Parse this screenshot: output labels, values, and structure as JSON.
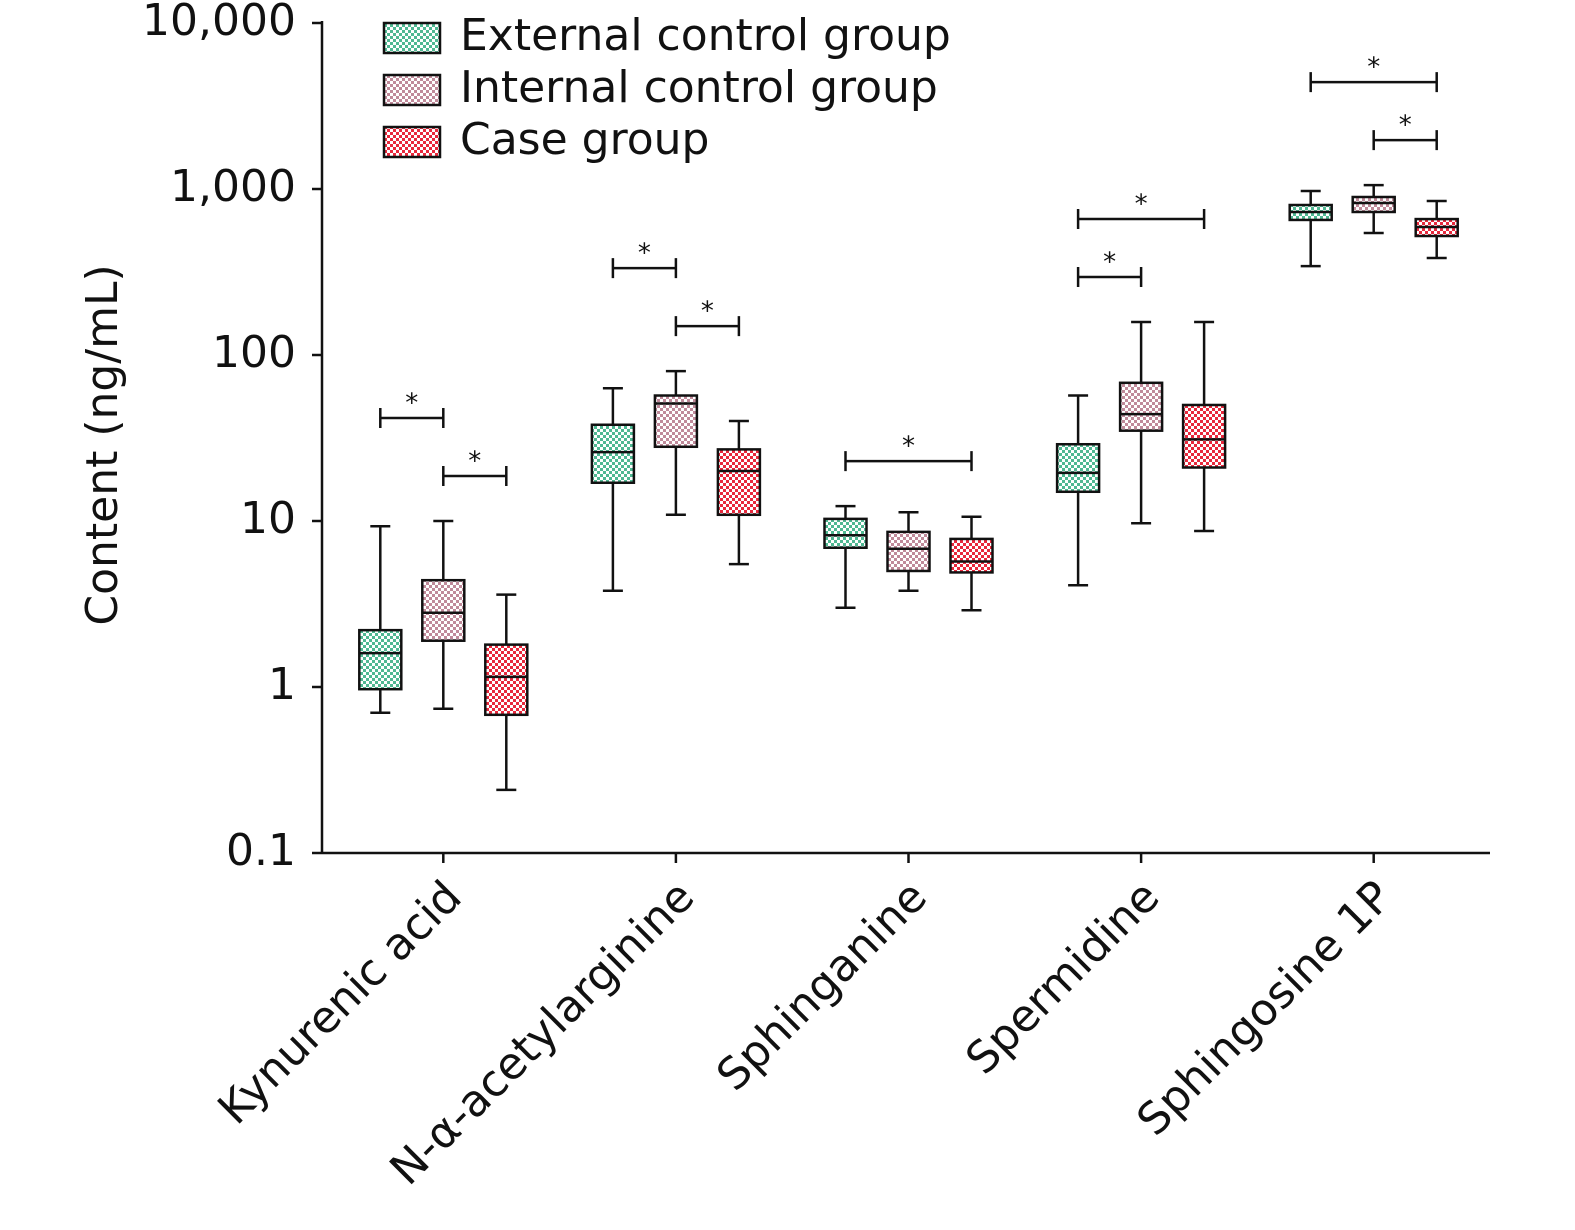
{
  "chart_data": {
    "type": "box",
    "y_label": "Content (ng/mL)",
    "yscale": "log",
    "ylim": [
      0.1,
      10000
    ],
    "yticks": [
      {
        "value": 10000,
        "label": "10,000"
      },
      {
        "value": 1000,
        "label": "1,000"
      },
      100,
      10,
      1,
      0.1
    ],
    "legend": "top-left",
    "categories": [
      "Kynurenic acid",
      "N-α-acetylarginine",
      "Sphinganine",
      "Spermidine",
      "Sphingosine 1P"
    ],
    "series": [
      {
        "name": "External control group",
        "color": "#4fb892",
        "values": [
          {
            "min": 0.7,
            "q1": 0.97,
            "median": 1.6,
            "q3": 2.2,
            "max": 9.3
          },
          {
            "min": 3.8,
            "q1": 17,
            "median": 26,
            "q3": 38,
            "max": 63
          },
          {
            "min": 3.0,
            "q1": 6.9,
            "median": 8.2,
            "q3": 10.3,
            "max": 12.3
          },
          {
            "min": 4.1,
            "q1": 15,
            "median": 19.5,
            "q3": 29,
            "max": 57
          },
          {
            "min": 343,
            "q1": 651,
            "median": 727,
            "q3": 801,
            "max": 973
          }
        ]
      },
      {
        "name": "Internal control group",
        "color": "#c08a9a",
        "values": [
          {
            "min": 0.74,
            "q1": 1.9,
            "median": 2.8,
            "q3": 4.4,
            "max": 10
          },
          {
            "min": 10.9,
            "q1": 28,
            "median": 51,
            "q3": 57,
            "max": 80
          },
          {
            "min": 3.8,
            "q1": 5.0,
            "median": 6.8,
            "q3": 8.6,
            "max": 11.3
          },
          {
            "min": 9.7,
            "q1": 35,
            "median": 44,
            "q3": 68,
            "max": 158
          },
          {
            "min": 543,
            "q1": 727,
            "median": 824,
            "q3": 895,
            "max": 1056
          }
        ]
      },
      {
        "name": "Case group",
        "color": "#e8283c",
        "values": [
          {
            "min": 0.24,
            "q1": 0.68,
            "median": 1.15,
            "q3": 1.8,
            "max": 3.6
          },
          {
            "min": 5.5,
            "q1": 10.9,
            "median": 20,
            "q3": 27,
            "max": 40
          },
          {
            "min": 2.9,
            "q1": 4.9,
            "median": 5.7,
            "q3": 7.8,
            "max": 10.6
          },
          {
            "min": 8.7,
            "q1": 21,
            "median": 31,
            "q3": 50,
            "max": 158
          },
          {
            "min": 384,
            "q1": 521,
            "median": 590,
            "q3": 659,
            "max": 847
          }
        ]
      }
    ],
    "significance": [
      {
        "category": "Kynurenic acid",
        "from": "Internal control group",
        "to": "Case group",
        "label": "*"
      },
      {
        "category": "Kynurenic acid",
        "from": "External control group",
        "to": "Internal control group",
        "label": "*"
      },
      {
        "category": "N-α-acetylarginine",
        "from": "Internal control group",
        "to": "Case group",
        "label": "*"
      },
      {
        "category": "N-α-acetylarginine",
        "from": "External control group",
        "to": "Internal control group",
        "label": "*"
      },
      {
        "category": "Sphinganine",
        "from": "External control group",
        "to": "Case group",
        "label": "*"
      },
      {
        "category": "Spermidine",
        "from": "External control group",
        "to": "Internal control group",
        "label": "*"
      },
      {
        "category": "Spermidine",
        "from": "External control group",
        "to": "Case group",
        "label": "*"
      },
      {
        "category": "Sphingosine 1P",
        "from": "Internal control group",
        "to": "Case group",
        "label": "*"
      },
      {
        "category": "Sphingosine 1P",
        "from": "External control group",
        "to": "Case group",
        "label": "*"
      }
    ]
  }
}
